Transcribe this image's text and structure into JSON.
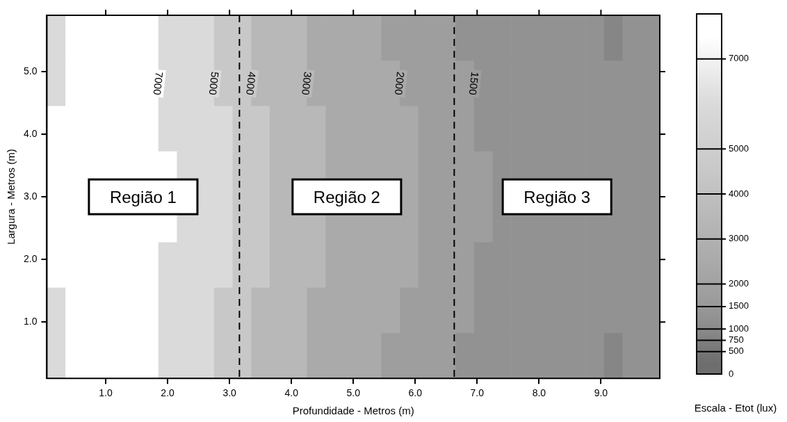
{
  "chart_data": {
    "type": "heatmap",
    "xlabel": "Profundidade - Metros (m)",
    "ylabel": "Largura - Metros (m)",
    "clabel": "Escala - Etot (lux)",
    "x": [
      0.2,
      0.5,
      0.8,
      1.1,
      1.4,
      1.7,
      2.0,
      2.3,
      2.6,
      2.9,
      3.2,
      3.5,
      3.8,
      4.1,
      4.4,
      4.7,
      5.0,
      5.3,
      5.6,
      5.9,
      6.2,
      6.5,
      6.8,
      7.1,
      7.4,
      7.7,
      8.0,
      8.3,
      8.6,
      8.9,
      9.2,
      9.5,
      9.8
    ],
    "cells": [
      [
        6000,
        7500,
        7500,
        7500,
        7500,
        7500,
        6000,
        6000,
        6000,
        4500,
        4500,
        3500,
        3500,
        3500,
        2500,
        2500,
        2500,
        2500,
        1750,
        1750,
        1750,
        1750,
        1250,
        1250,
        1250,
        1250,
        1250,
        1250,
        1250,
        1250,
        875,
        1250,
        1250
      ],
      [
        6000,
        7500,
        7500,
        7500,
        7500,
        7500,
        6000,
        6000,
        6000,
        4500,
        4500,
        3500,
        3500,
        3500,
        2500,
        2500,
        2500,
        2500,
        2500,
        1750,
        1750,
        1750,
        1750,
        1250,
        1250,
        1250,
        1250,
        1250,
        1250,
        1250,
        1250,
        1250,
        1250
      ],
      [
        7500,
        7500,
        7500,
        7500,
        7500,
        7500,
        6000,
        6000,
        6000,
        6000,
        4500,
        4500,
        3500,
        3500,
        3500,
        2500,
        2500,
        2500,
        2500,
        2500,
        1750,
        1750,
        1750,
        1250,
        1250,
        1250,
        1250,
        1250,
        1250,
        1250,
        1250,
        1250,
        1250
      ],
      [
        7500,
        7500,
        7500,
        7500,
        7500,
        7500,
        7500,
        6000,
        6000,
        6000,
        4500,
        4500,
        3500,
        3500,
        3500,
        2500,
        2500,
        2500,
        2500,
        2500,
        1750,
        1750,
        1750,
        1750,
        1250,
        1250,
        1250,
        1250,
        1250,
        1250,
        1250,
        1250,
        1250
      ],
      [
        7500,
        7500,
        7500,
        7500,
        7500,
        7500,
        7500,
        6000,
        6000,
        6000,
        4500,
        4500,
        3500,
        3500,
        3500,
        2500,
        2500,
        2500,
        2500,
        2500,
        1750,
        1750,
        1750,
        1750,
        1250,
        1250,
        1250,
        1250,
        1250,
        1250,
        1250,
        1250,
        1250
      ],
      [
        7500,
        7500,
        7500,
        7500,
        7500,
        7500,
        6000,
        6000,
        6000,
        6000,
        4500,
        4500,
        3500,
        3500,
        3500,
        2500,
        2500,
        2500,
        2500,
        2500,
        1750,
        1750,
        1750,
        1250,
        1250,
        1250,
        1250,
        1250,
        1250,
        1250,
        1250,
        1250,
        1250
      ],
      [
        6000,
        7500,
        7500,
        7500,
        7500,
        7500,
        6000,
        6000,
        6000,
        4500,
        4500,
        3500,
        3500,
        3500,
        2500,
        2500,
        2500,
        2500,
        2500,
        1750,
        1750,
        1750,
        1750,
        1250,
        1250,
        1250,
        1250,
        1250,
        1250,
        1250,
        1250,
        1250,
        1250
      ],
      [
        6000,
        7500,
        7500,
        7500,
        7500,
        7500,
        6000,
        6000,
        6000,
        4500,
        4500,
        3500,
        3500,
        3500,
        2500,
        2500,
        2500,
        2500,
        1750,
        1750,
        1750,
        1750,
        1250,
        1250,
        1250,
        1250,
        1250,
        1250,
        1250,
        1250,
        875,
        1250,
        1250
      ]
    ],
    "colors": [
      "#6e6e6e",
      "#7a7a7a",
      "#868686",
      "#929292",
      "#9e9e9e",
      "#aaaaaa",
      "#b8b8b8",
      "#c8c8c8",
      "#dadada",
      "#ffffff"
    ],
    "clim": [
      0,
      8000
    ],
    "cticks": [
      0,
      500,
      750,
      1000,
      1500,
      2000,
      3000,
      4000,
      5000,
      7000
    ],
    "xlim": [
      0.05,
      9.95
    ],
    "ylim": [
      0.1,
      5.9
    ],
    "xticks": [
      {
        "value": 1,
        "label": "1.0"
      },
      {
        "value": 2,
        "label": "2.0"
      },
      {
        "value": 3,
        "label": "3.0"
      },
      {
        "value": 4,
        "label": "4.0"
      },
      {
        "value": 5,
        "label": "5.0"
      },
      {
        "value": 6,
        "label": "6.0"
      },
      {
        "value": 7,
        "label": "7.0"
      },
      {
        "value": 8,
        "label": "8.0"
      },
      {
        "value": 9,
        "label": "9.0"
      }
    ],
    "yticks": [
      {
        "value": 1,
        "label": "1.0"
      },
      {
        "value": 2,
        "label": "2.0"
      },
      {
        "value": 3,
        "label": "3.0"
      },
      {
        "value": 4,
        "label": "4.0"
      },
      {
        "value": 5,
        "label": "5.0"
      }
    ],
    "ref_lines": [
      {
        "axis": "x",
        "value": 3.16,
        "line_style": "dashed",
        "color": "#000000"
      },
      {
        "axis": "x",
        "value": 6.63,
        "line_style": "dashed",
        "color": "#000000"
      }
    ],
    "annotations": [
      "Região 1",
      "Região 2",
      "Região 3",
      "7000",
      "5000",
      "4000",
      "3000",
      "2000",
      "1500"
    ]
  }
}
